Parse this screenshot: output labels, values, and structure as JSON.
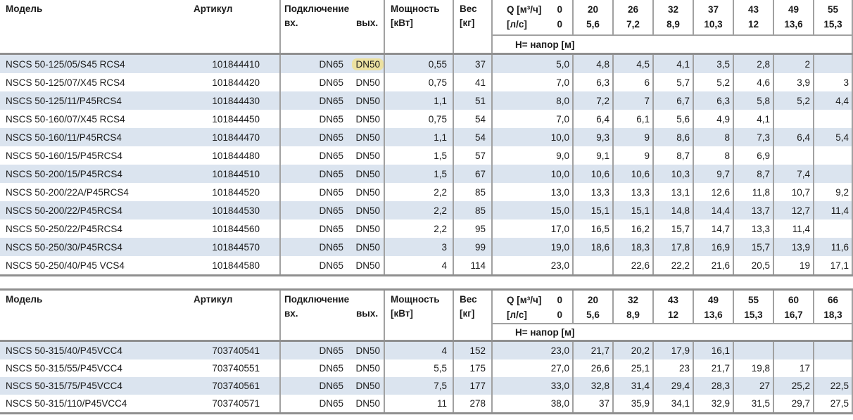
{
  "colors": {
    "stripe": "#dbe4ef",
    "line": "#a1a1a1",
    "heavy": "#8f8f8f",
    "highlight": "#ece1a1",
    "text": "#1b1b1b",
    "bg": "#ffffff"
  },
  "labels": {
    "model": "Модель",
    "article": "Артикул",
    "connection": "Подключение",
    "inlet": "вх.",
    "outlet": "вых.",
    "power_l1": "Мощность",
    "power_l2": "[кВт]",
    "weight_l1": "Вес",
    "weight_l2": "[кг]",
    "q_row1_label": "Q [м³/ч]",
    "q_row1_zero": "0",
    "q_row2_label": "[л/с]",
    "q_row2_zero": "0",
    "head_row": "H= напор [м]"
  },
  "tables": [
    {
      "q_m3h": [
        "20",
        "26",
        "32",
        "37",
        "43",
        "49",
        "55"
      ],
      "q_ls": [
        "5,6",
        "7,2",
        "8,9",
        "10,3",
        "12",
        "13,6",
        "15,3"
      ],
      "rows": [
        {
          "model": "NSCS 50-125/05/S45 RCS4",
          "article": "101844410",
          "inlet": "DN65",
          "outlet": "DN50",
          "outlet_highlighted": true,
          "power": "0,55",
          "weight": "37",
          "head_values": [
            "5,0",
            "4,8",
            "4,5",
            "4,1",
            "3,5",
            "2,8",
            "2",
            ""
          ]
        },
        {
          "model": "NSCS 50-125/07/X45 RCS4",
          "article": "101844420",
          "inlet": "DN65",
          "outlet": "DN50",
          "outlet_highlighted": false,
          "power": "0,75",
          "weight": "41",
          "head_values": [
            "7,0",
            "6,3",
            "6",
            "5,7",
            "5,2",
            "4,6",
            "3,9",
            "3"
          ]
        },
        {
          "model": "NSCS 50-125/11/P45RCS4",
          "article": "101844430",
          "inlet": "DN65",
          "outlet": "DN50",
          "outlet_highlighted": false,
          "power": "1,1",
          "weight": "51",
          "head_values": [
            "8,0",
            "7,2",
            "7",
            "6,7",
            "6,3",
            "5,8",
            "5,2",
            "4,4"
          ]
        },
        {
          "model": "NSCS 50-160/07/X45 RCS4",
          "article": "101844450",
          "inlet": "DN65",
          "outlet": "DN50",
          "outlet_highlighted": false,
          "power": "0,75",
          "weight": "54",
          "head_values": [
            "7,0",
            "6,4",
            "6,1",
            "5,6",
            "4,9",
            "4,1",
            "",
            ""
          ]
        },
        {
          "model": "NSCS 50-160/11/P45RCS4",
          "article": "101844470",
          "inlet": "DN65",
          "outlet": "DN50",
          "outlet_highlighted": false,
          "power": "1,1",
          "weight": "54",
          "head_values": [
            "10,0",
            "9,3",
            "9",
            "8,6",
            "8",
            "7,3",
            "6,4",
            "5,4"
          ]
        },
        {
          "model": "NSCS 50-160/15/P45RCS4",
          "article": "101844480",
          "inlet": "DN65",
          "outlet": "DN50",
          "outlet_highlighted": false,
          "power": "1,5",
          "weight": "57",
          "head_values": [
            "9,0",
            "9,1",
            "9",
            "8,7",
            "8",
            "6,9",
            "",
            ""
          ]
        },
        {
          "model": "NSCS 50-200/15/P45RCS4",
          "article": "101844510",
          "inlet": "DN65",
          "outlet": "DN50",
          "outlet_highlighted": false,
          "power": "1,5",
          "weight": "67",
          "head_values": [
            "10,0",
            "10,6",
            "10,6",
            "10,3",
            "9,7",
            "8,7",
            "7,4",
            ""
          ]
        },
        {
          "model": "NSCS 50-200/22A/P45RCS4",
          "article": "101844520",
          "inlet": "DN65",
          "outlet": "DN50",
          "outlet_highlighted": false,
          "power": "2,2",
          "weight": "85",
          "head_values": [
            "13,0",
            "13,3",
            "13,3",
            "13,1",
            "12,6",
            "11,8",
            "10,7",
            "9,2"
          ]
        },
        {
          "model": "NSCS 50-200/22/P45RCS4",
          "article": "101844530",
          "inlet": "DN65",
          "outlet": "DN50",
          "outlet_highlighted": false,
          "power": "2,2",
          "weight": "85",
          "head_values": [
            "15,0",
            "15,1",
            "15,1",
            "14,8",
            "14,4",
            "13,7",
            "12,7",
            "11,4"
          ]
        },
        {
          "model": "NSCS 50-250/22/P45RCS4",
          "article": "101844560",
          "inlet": "DN65",
          "outlet": "DN50",
          "outlet_highlighted": false,
          "power": "2,2",
          "weight": "95",
          "head_values": [
            "17,0",
            "16,5",
            "16,2",
            "15,7",
            "14,7",
            "13,3",
            "11,4",
            ""
          ]
        },
        {
          "model": "NSCS 50-250/30/P45RCS4",
          "article": "101844570",
          "inlet": "DN65",
          "outlet": "DN50",
          "outlet_highlighted": false,
          "power": "3",
          "weight": "99",
          "head_values": [
            "19,0",
            "18,6",
            "18,3",
            "17,8",
            "16,9",
            "15,7",
            "13,9",
            "11,6"
          ]
        },
        {
          "model": "NSCS 50-250/40/P45 VCS4",
          "article": "101844580",
          "inlet": "DN65",
          "outlet": "DN50",
          "outlet_highlighted": false,
          "power": "4",
          "weight": "114",
          "head_values": [
            "23,0",
            "",
            "22,6",
            "22,2",
            "21,6",
            "20,5",
            "19",
            "17,1"
          ]
        }
      ]
    },
    {
      "q_m3h": [
        "20",
        "32",
        "43",
        "49",
        "55",
        "60",
        "66"
      ],
      "q_ls": [
        "5,6",
        "8,9",
        "12",
        "13,6",
        "15,3",
        "16,7",
        "18,3"
      ],
      "rows": [
        {
          "model": "NSCS 50-315/40/P45VCC4",
          "article": "703740541",
          "inlet": "DN65",
          "outlet": "DN50",
          "outlet_highlighted": false,
          "power": "4",
          "weight": "152",
          "head_values": [
            "23,0",
            "21,7",
            "20,2",
            "17,9",
            "16,1",
            "",
            "",
            ""
          ]
        },
        {
          "model": "NSCS 50-315/55/P45VCC4",
          "article": "703740551",
          "inlet": "DN65",
          "outlet": "DN50",
          "outlet_highlighted": false,
          "power": "5,5",
          "weight": "175",
          "head_values": [
            "27,0",
            "26,6",
            "25,1",
            "23",
            "21,7",
            "19,8",
            "17",
            ""
          ]
        },
        {
          "model": "NSCS 50-315/75/P45VCC4",
          "article": "703740561",
          "inlet": "DN65",
          "outlet": "DN50",
          "outlet_highlighted": false,
          "power": "7,5",
          "weight": "177",
          "head_values": [
            "33,0",
            "32,8",
            "31,4",
            "29,4",
            "28,3",
            "27",
            "25,2",
            "22,5"
          ]
        },
        {
          "model": "NSCS 50-315/110/P45VCC4",
          "article": "703740571",
          "inlet": "DN65",
          "outlet": "DN50",
          "outlet_highlighted": false,
          "power": "11",
          "weight": "278",
          "head_values": [
            "38,0",
            "37",
            "35,9",
            "34,1",
            "32,9",
            "31,5",
            "29,7",
            "27,5"
          ]
        }
      ]
    }
  ]
}
